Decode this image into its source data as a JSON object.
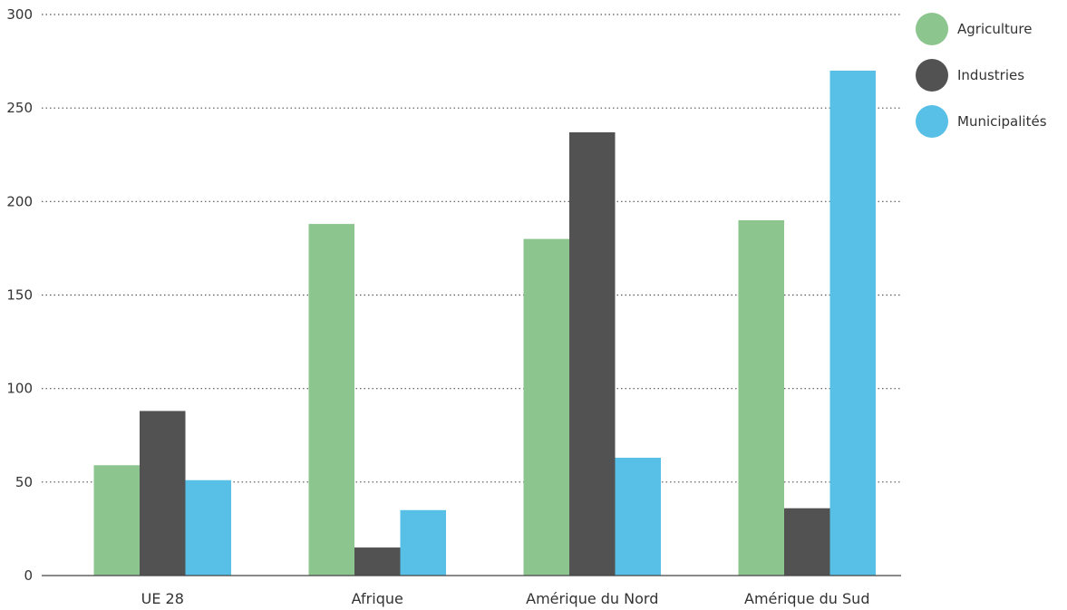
{
  "chart_data": {
    "type": "bar",
    "categories": [
      "UE 28",
      "Afrique",
      "Amérique du Nord",
      "Amérique du Sud"
    ],
    "series": [
      {
        "name": "Agriculture",
        "values": [
          59,
          188,
          180,
          190
        ],
        "color": "#8dc58f"
      },
      {
        "name": "Industries",
        "values": [
          88,
          15,
          237,
          36
        ],
        "color": "#525252"
      },
      {
        "name": "Municipalités",
        "values": [
          51,
          35,
          63,
          270
        ],
        "color": "#58c0e7"
      }
    ],
    "yticks": [
      0,
      50,
      100,
      150,
      200,
      250,
      300
    ],
    "ylim": [
      0,
      300
    ],
    "grid": "dotted horizontal",
    "legend_position": "top-right",
    "title": "",
    "xlabel": "",
    "ylabel": ""
  }
}
